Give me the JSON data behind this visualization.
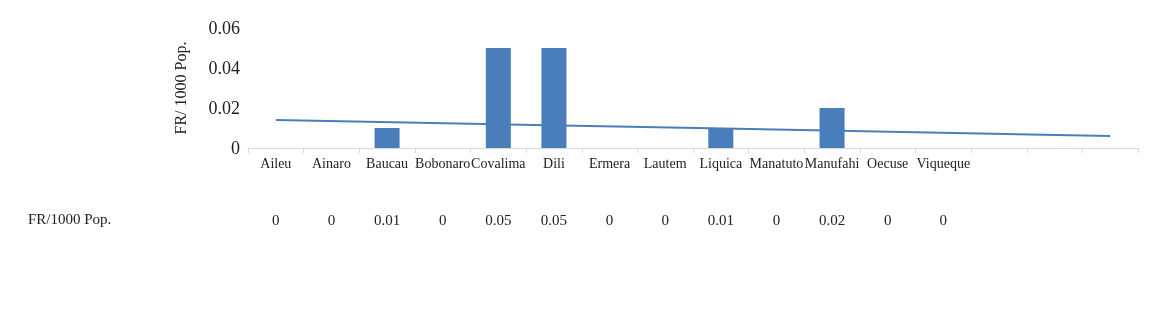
{
  "chart_data": {
    "type": "bar",
    "ylabel": "FR/ 1000 Pop.",
    "categories": [
      "Aileu",
      "Ainaro",
      "Baucau",
      "Bobonaro",
      "Covalima",
      "Dili",
      "Ermera",
      "Lautem",
      "Liquica",
      "Manatuto",
      "Manufahi",
      "Oecuse",
      "Viqueque",
      null,
      null,
      null
    ],
    "series": [
      {
        "name": "FR/1000 Pop.",
        "color": "#4a7ebb",
        "values": [
          0,
          0,
          0.01,
          0,
          0.05,
          0.05,
          0,
          0,
          0.01,
          0,
          0.02,
          0,
          0,
          null,
          null,
          null
        ],
        "value_labels": [
          "0",
          "0",
          "0.01",
          "0",
          "0.05",
          "0.05",
          "0",
          "0",
          "0.01",
          "0",
          "0.02",
          "0",
          "0",
          null,
          null,
          null
        ]
      },
      {
        "type": "line",
        "color": "#4a7ebb",
        "values": [
          0.014,
          null,
          null,
          null,
          null,
          null,
          null,
          null,
          null,
          null,
          null,
          null,
          null,
          null,
          null,
          0.006
        ]
      }
    ],
    "ylim": [
      0,
      0.06
    ],
    "yticks": [
      0,
      0.02,
      0.04,
      0.06
    ],
    "grid": false
  }
}
